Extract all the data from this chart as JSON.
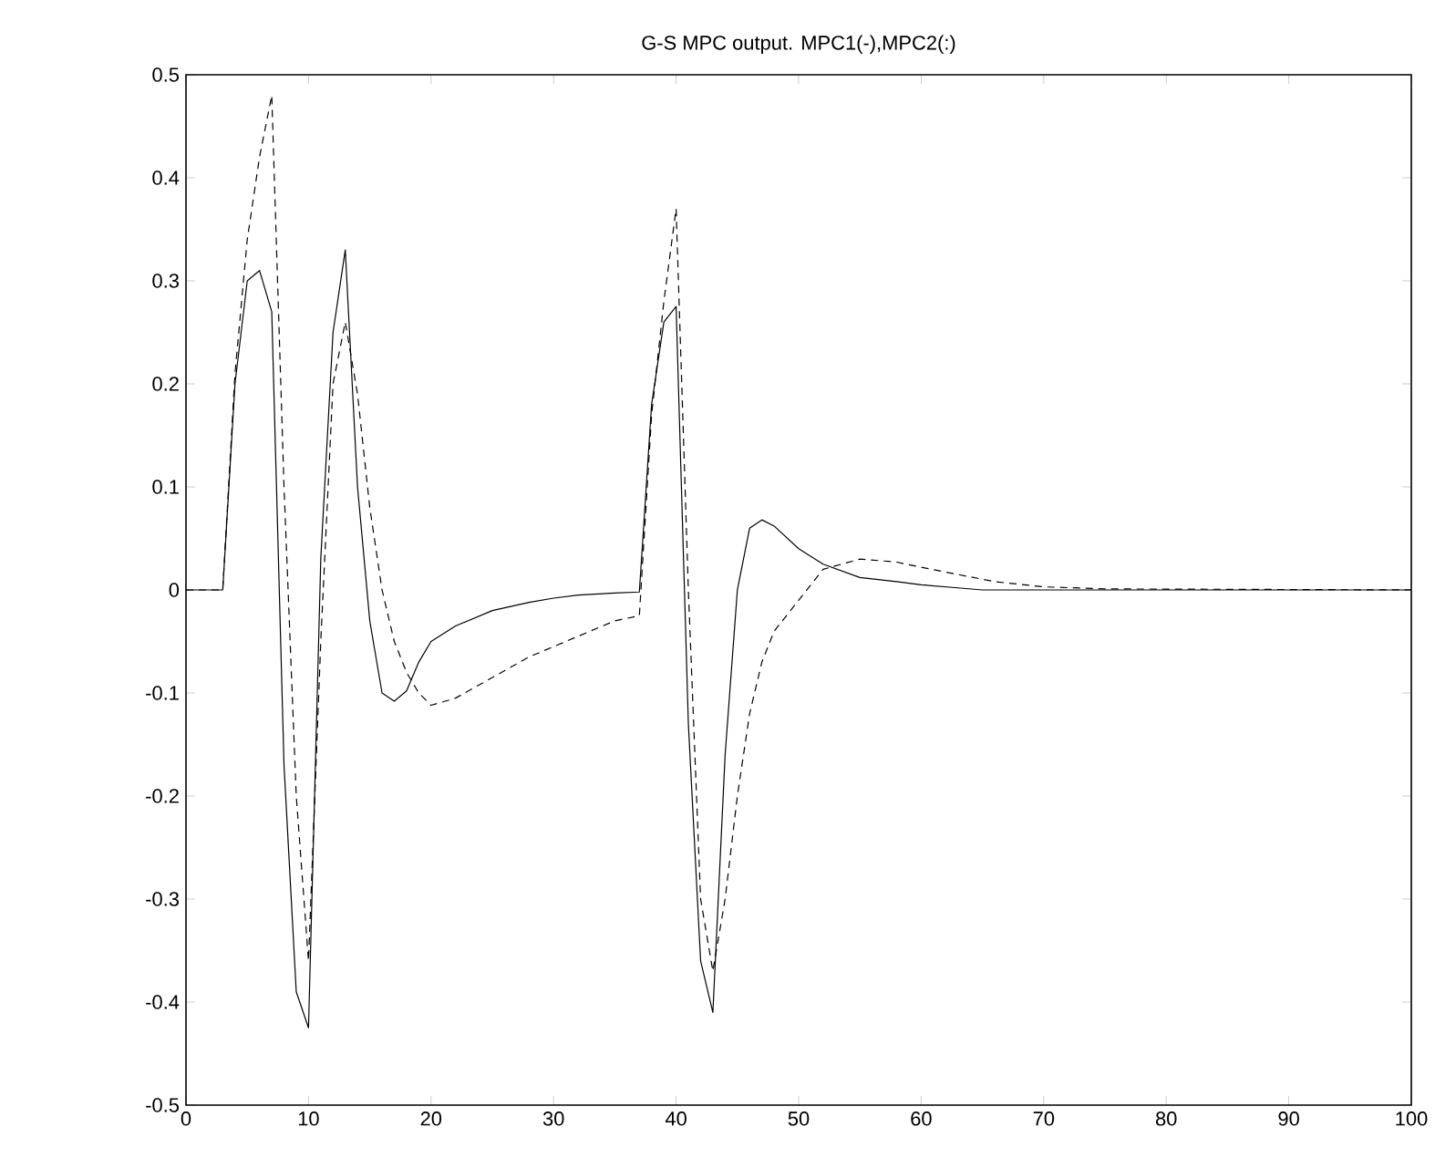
{
  "chart_data": {
    "type": "line",
    "title": "G-S MPC output. MPC1(-),MPC2(:)",
    "xlim": [
      0,
      100
    ],
    "ylim": [
      -0.5,
      0.5
    ],
    "xticks": [
      0,
      10,
      20,
      30,
      40,
      50,
      60,
      70,
      80,
      90,
      100
    ],
    "yticks": [
      -0.5,
      -0.4,
      -0.3,
      -0.2,
      -0.1,
      0,
      0.1,
      0.2,
      0.3,
      0.4,
      0.5
    ],
    "series": [
      {
        "color": "#000000",
        "line_style": "solid",
        "x": [
          0,
          1,
          2,
          3,
          4,
          5,
          6,
          7,
          8,
          9,
          10,
          11,
          12,
          13,
          14,
          15,
          16,
          17,
          18,
          19,
          20,
          22,
          25,
          28,
          30,
          32,
          35,
          37,
          38,
          39,
          40,
          41,
          42,
          43,
          44,
          45,
          46,
          47,
          48,
          50,
          52,
          55,
          58,
          60,
          63,
          65,
          100
        ],
        "values": [
          0,
          0,
          0,
          0,
          0.2,
          0.3,
          0.31,
          0.27,
          -0.17,
          -0.39,
          -0.425,
          0.03,
          0.25,
          0.33,
          0.1,
          -0.03,
          -0.1,
          -0.108,
          -0.098,
          -0.07,
          -0.05,
          -0.035,
          -0.02,
          -0.012,
          -0.008,
          -0.005,
          -0.003,
          -0.002,
          0.18,
          0.26,
          0.275,
          -0.13,
          -0.36,
          -0.41,
          -0.16,
          0,
          0.06,
          0.068,
          0.062,
          0.04,
          0.025,
          0.012,
          0.008,
          0.005,
          0.002,
          0,
          0
        ]
      },
      {
        "color": "#000000",
        "line_style": "dashed",
        "x": [
          0,
          1,
          2,
          3,
          4,
          5,
          6,
          7,
          8,
          9,
          10,
          11,
          12,
          13,
          14,
          15,
          16,
          17,
          18,
          19,
          20,
          22,
          25,
          28,
          30,
          33,
          35,
          37,
          38,
          39,
          40,
          41,
          42,
          43,
          44,
          45,
          46,
          47,
          48,
          50,
          52,
          55,
          58,
          60,
          63,
          66,
          70,
          75,
          100
        ],
        "values": [
          0,
          0,
          0,
          0,
          0.21,
          0.34,
          0.42,
          0.48,
          0.1,
          -0.2,
          -0.36,
          -0.05,
          0.2,
          0.26,
          0.19,
          0.08,
          0,
          -0.05,
          -0.08,
          -0.1,
          -0.112,
          -0.105,
          -0.085,
          -0.065,
          -0.055,
          -0.04,
          -0.03,
          -0.025,
          0.17,
          0.28,
          0.37,
          0,
          -0.3,
          -0.37,
          -0.3,
          -0.2,
          -0.12,
          -0.07,
          -0.04,
          -0.01,
          0.02,
          0.03,
          0.027,
          0.022,
          0.015,
          0.008,
          0.003,
          0.001,
          0
        ]
      }
    ]
  }
}
